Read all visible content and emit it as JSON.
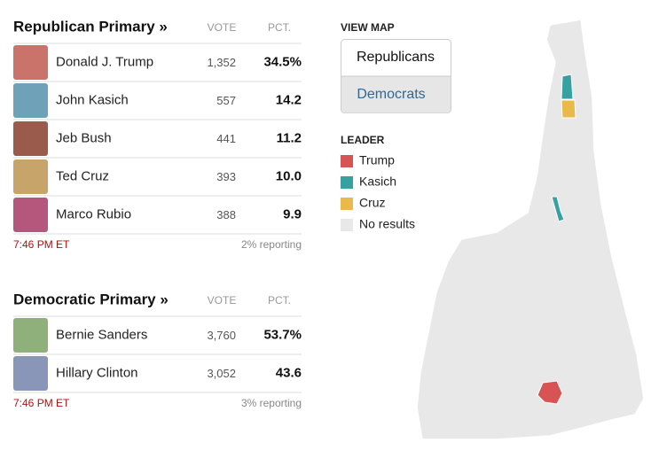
{
  "results": [
    {
      "title": "Republican Primary »",
      "vote_header": "VOTE",
      "pct_header": "PCT.",
      "rows": [
        {
          "name": "Donald J. Trump",
          "votes": "1,352",
          "pct": "34.5%",
          "photo_color": "#c9736a"
        },
        {
          "name": "John Kasich",
          "votes": "557",
          "pct": "14.2",
          "photo_color": "#6fa2b8"
        },
        {
          "name": "Jeb Bush",
          "votes": "441",
          "pct": "11.2",
          "photo_color": "#9a5a4c"
        },
        {
          "name": "Ted Cruz",
          "votes": "393",
          "pct": "10.0",
          "photo_color": "#c6a46a"
        },
        {
          "name": "Marco Rubio",
          "votes": "388",
          "pct": "9.9",
          "photo_color": "#b5577c"
        }
      ],
      "time": "7:46 PM ET",
      "reporting": "2% reporting"
    },
    {
      "title": "Democratic Primary »",
      "vote_header": "VOTE",
      "pct_header": "PCT.",
      "rows": [
        {
          "name": "Bernie Sanders",
          "votes": "3,760",
          "pct": "53.7%",
          "photo_color": "#8fb07a"
        },
        {
          "name": "Hillary Clinton",
          "votes": "3,052",
          "pct": "43.6",
          "photo_color": "#8a96b8"
        }
      ],
      "time": "7:46 PM ET",
      "reporting": "3% reporting"
    }
  ],
  "map": {
    "view_map": "VIEW MAP",
    "buttons": [
      "Republicans",
      "Democrats"
    ],
    "legend_title": "LEADER",
    "legend": [
      {
        "label": "Trump",
        "color": "#d75354"
      },
      {
        "label": "Kasich",
        "color": "#36a1a0"
      },
      {
        "label": "Cruz",
        "color": "#e9b94a"
      },
      {
        "label": "No results",
        "color": "#e8e8e8"
      }
    ]
  }
}
